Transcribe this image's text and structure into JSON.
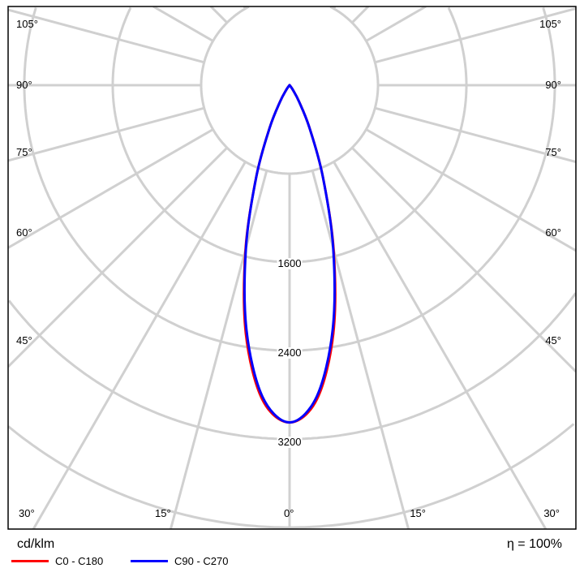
{
  "chart_data": {
    "type": "polar",
    "unit": "cd/klm",
    "efficiency": "η = 100%",
    "radial_ticks": [
      800,
      1600,
      2400,
      3200,
      4000,
      4800,
      5600,
      6400
    ],
    "radial_tick_labels": [
      "1600",
      "2400",
      "3200"
    ],
    "angle_labels_left": [
      "105°",
      "90°",
      "75°",
      "60°",
      "45°",
      "30°",
      "15°"
    ],
    "angle_labels_right": [
      "105°",
      "90°",
      "75°",
      "60°",
      "45°",
      "30°",
      "15°"
    ],
    "angle_label_center": "0°",
    "grid": true,
    "legend_position": "bottom-left",
    "angles_deg": [
      0,
      5,
      10,
      15,
      20,
      25,
      30,
      35,
      40,
      45,
      60,
      75,
      90
    ],
    "series": [
      {
        "name": "C0 - C180",
        "color": "#ff0000",
        "values": [
          3050,
          2850,
          2280,
          1540,
          880,
          430,
          175,
          58,
          16,
          5,
          0,
          0,
          0
        ]
      },
      {
        "name": "C90 - C270",
        "color": "#0000ff",
        "values": [
          3050,
          2826,
          2246,
          1525,
          879,
          427,
          172,
          56,
          15,
          4,
          0,
          0,
          0
        ]
      }
    ]
  }
}
